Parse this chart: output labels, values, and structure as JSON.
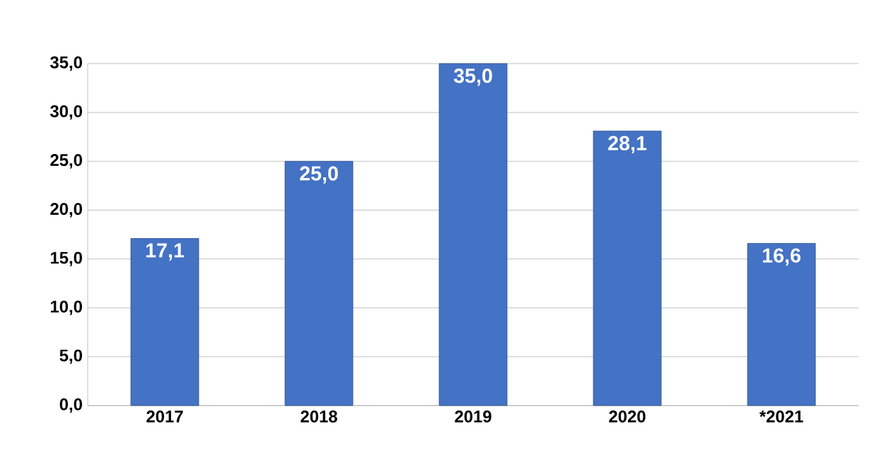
{
  "chart_data": {
    "type": "bar",
    "categories": [
      "2017",
      "2018",
      "2019",
      "2020",
      "*2021"
    ],
    "values": [
      17.1,
      25.0,
      35.0,
      28.1,
      16.6
    ],
    "value_labels": [
      "17,1",
      "25,0",
      "35,0",
      "28,1",
      "16,6"
    ],
    "color": "#4472c4",
    "ylim": [
      0,
      35
    ],
    "yticks": [
      {
        "value": 0,
        "label": "0,0"
      },
      {
        "value": 5,
        "label": "5,0"
      },
      {
        "value": 10,
        "label": "10,0"
      },
      {
        "value": 15,
        "label": "15,0"
      },
      {
        "value": 20,
        "label": "20,0"
      },
      {
        "value": 25,
        "label": "25,0"
      },
      {
        "value": 30,
        "label": "30,0"
      },
      {
        "value": 35,
        "label": "35,0"
      }
    ],
    "grid": "y"
  }
}
